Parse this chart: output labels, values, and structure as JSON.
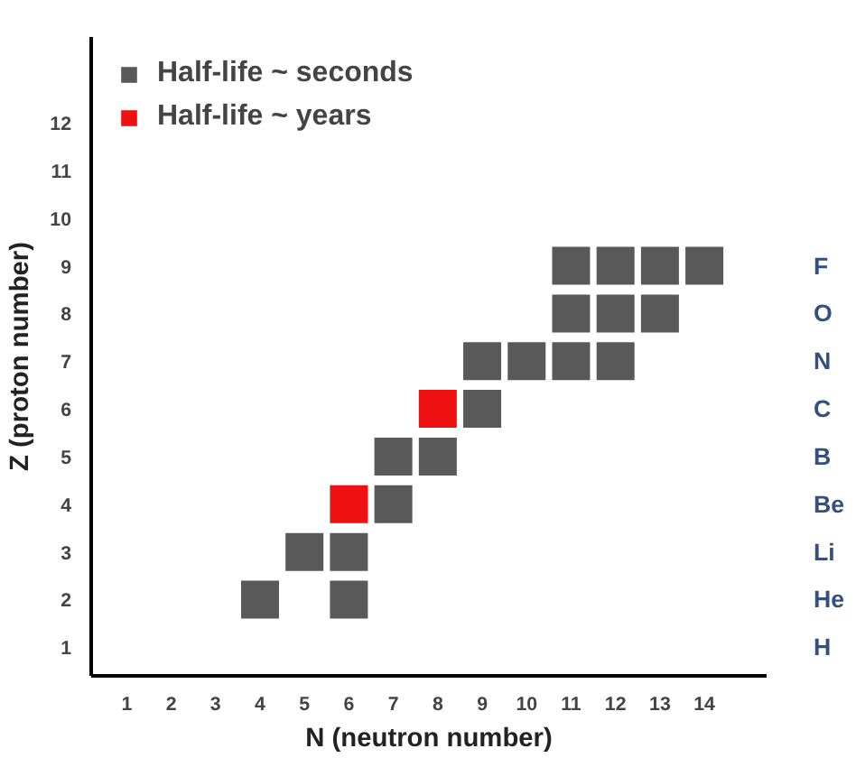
{
  "chart_data": {
    "type": "scatter",
    "xlabel": "N (neutron number)",
    "ylabel": "Z (proton number)",
    "marker": "square",
    "grid": false,
    "legend": "top left",
    "xlim": [
      0.2,
      15.4
    ],
    "xticks": [
      1,
      2,
      3,
      4,
      5,
      6,
      7,
      8,
      9,
      10,
      11,
      12,
      13,
      14
    ],
    "ylim": [
      0.4,
      13.8
    ],
    "yticks": [
      1,
      2,
      3,
      4,
      5,
      6,
      7,
      8,
      9,
      10,
      11,
      12
    ],
    "annotations": [
      "H",
      "He",
      "Li",
      "Be",
      "B",
      "C",
      "N",
      "O",
      "F"
    ],
    "series": [
      {
        "name": "Half-life ~ seconds",
        "color": "#595959",
        "x": [
          4,
          6,
          5,
          6,
          7,
          7,
          8,
          9,
          9,
          10,
          11,
          12,
          11,
          12,
          13,
          11,
          12,
          13,
          14
        ],
        "values": [
          2,
          2,
          3,
          3,
          4,
          5,
          5,
          6,
          7,
          7,
          7,
          7,
          8,
          8,
          8,
          9,
          9,
          9,
          9
        ]
      },
      {
        "name": "Half-life ~ years",
        "color": "#ee1111",
        "x": [
          6,
          8
        ],
        "values": [
          4,
          6
        ]
      }
    ]
  }
}
